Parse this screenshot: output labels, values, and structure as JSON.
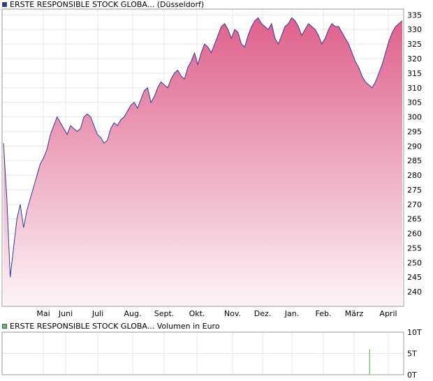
{
  "price_legend": {
    "label": "ERSTE RESPONSIBLE STOCK GLOBA... (Düsseldorf)",
    "color": "#1f3a93"
  },
  "volume_legend": {
    "label": "ERSTE RESPONSIBLE STOCK GLOBA... Volumen in Euro",
    "color": "#66bb66"
  },
  "chart_data": [
    {
      "type": "area",
      "title": "ERSTE RESPONSIBLE STOCK GLOBA... (Düsseldorf)",
      "xlabel": "",
      "ylabel": "",
      "ylim": [
        235,
        337
      ],
      "y_ticks": [
        240,
        245,
        250,
        255,
        260,
        265,
        270,
        275,
        280,
        285,
        290,
        295,
        300,
        305,
        310,
        315,
        320,
        325,
        330,
        335
      ],
      "x_ticks": [
        "Mai",
        "Juni",
        "Juli",
        "Aug.",
        "Sept.",
        "Okt.",
        "Nov.",
        "Dez.",
        "Jan.",
        "Feb.",
        "März",
        "April"
      ],
      "grid": true,
      "line_color": "#2b3c9a",
      "fill_top": "#e0608c",
      "fill_bottom": "#fdf3f7",
      "x_start": "Apr 2024",
      "x_end": "Apr 2025",
      "series": [
        {
          "values": [
            291,
            272,
            245,
            255,
            265,
            270,
            262,
            268,
            272,
            276,
            280,
            284,
            286,
            289,
            294,
            297,
            300,
            298,
            296,
            294,
            297,
            296,
            295,
            296,
            300,
            301,
            300,
            297,
            294,
            293,
            291,
            292,
            296,
            298,
            297,
            299,
            300,
            302,
            304,
            305,
            303,
            306,
            309,
            310,
            305,
            307,
            310,
            312,
            311,
            310,
            313,
            315,
            316,
            314,
            313,
            317,
            319,
            322,
            318,
            322,
            325,
            324,
            322,
            325,
            328,
            331,
            332,
            330,
            327,
            330,
            329,
            325,
            324,
            328,
            331,
            333,
            334,
            332,
            331,
            330,
            332,
            327,
            325,
            328,
            331,
            332,
            334,
            333,
            331,
            328,
            330,
            332,
            331,
            330,
            328,
            325,
            327,
            330,
            332,
            331,
            331,
            329,
            327,
            325,
            322,
            319,
            317,
            314,
            312,
            311,
            310,
            312,
            315,
            318,
            322,
            326,
            329,
            331,
            332,
            333
          ]
        }
      ]
    },
    {
      "type": "bar",
      "title": "ERSTE RESPONSIBLE STOCK GLOBA... Volumen in Euro",
      "xlabel": "",
      "ylabel": "",
      "ylim": [
        0,
        10
      ],
      "y_ticks": [
        "0T",
        "5T",
        "10T"
      ],
      "grid": true,
      "bar_color": "#66bb66",
      "bars": [
        {
          "position": 0.914,
          "value": 6
        }
      ]
    }
  ]
}
